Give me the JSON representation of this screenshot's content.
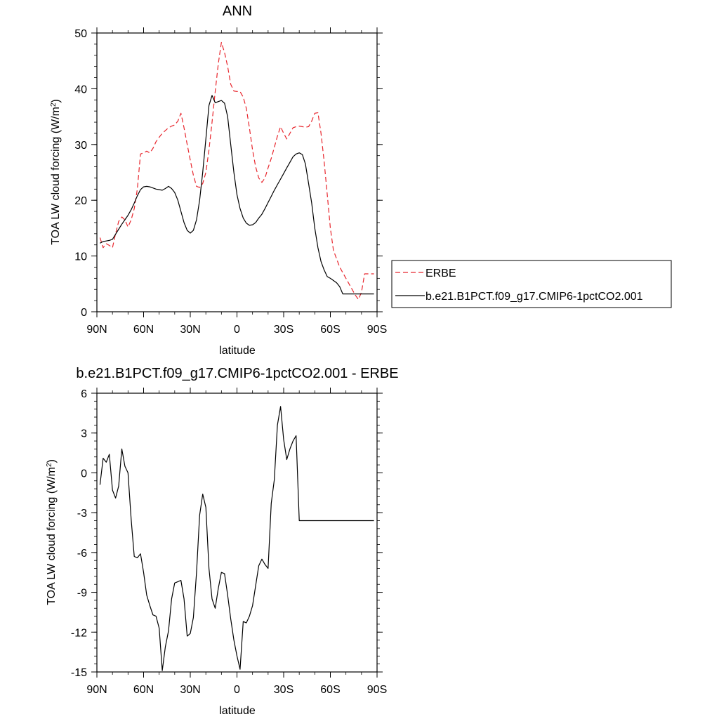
{
  "chart_data": [
    {
      "type": "line",
      "title": "ANN",
      "xlabel": "latitude",
      "ylabel": "TOA LW cloud forcing (W/m²)",
      "xlim": [
        90,
        -90
      ],
      "ylim": [
        0,
        50
      ],
      "x_ticks": [
        {
          "value": 90,
          "label": "90N"
        },
        {
          "value": 60,
          "label": "60N"
        },
        {
          "value": 30,
          "label": "30N"
        },
        {
          "value": 0,
          "label": "0"
        },
        {
          "value": -30,
          "label": "30S"
        },
        {
          "value": -60,
          "label": "60S"
        },
        {
          "value": -90,
          "label": "90S"
        }
      ],
      "y_ticks": [
        {
          "value": 0,
          "label": "0"
        },
        {
          "value": 10,
          "label": "10"
        },
        {
          "value": 20,
          "label": "20"
        },
        {
          "value": 30,
          "label": "30"
        },
        {
          "value": 40,
          "label": "40"
        },
        {
          "value": 50,
          "label": "50"
        }
      ],
      "legend_position": "right",
      "series": [
        {
          "name": "ERBE",
          "color": "#e8262d",
          "dash": "dashed",
          "x": [
            88,
            86,
            84,
            82,
            80,
            78,
            76,
            74,
            72,
            70,
            68,
            66,
            64,
            62,
            60,
            58,
            56,
            54,
            52,
            50,
            48,
            46,
            44,
            42,
            40,
            38,
            36,
            34,
            32,
            30,
            28,
            26,
            24,
            22,
            20,
            18,
            16,
            14,
            12,
            10,
            8,
            6,
            4,
            2,
            0,
            -2,
            -4,
            -6,
            -8,
            -10,
            -12,
            -14,
            -16,
            -18,
            -20,
            -22,
            -24,
            -26,
            -28,
            -30,
            -32,
            -34,
            -36,
            -38,
            -40,
            -42,
            -44,
            -46,
            -48,
            -50,
            -52,
            -54,
            -56,
            -58,
            -60,
            -62,
            -64,
            -66,
            -68,
            -70,
            -72,
            -74,
            -76,
            -78,
            -80,
            -82,
            -84,
            -86,
            -88
          ],
          "y": [
            13.3,
            11.5,
            12.2,
            11.9,
            11.5,
            14.0,
            16.2,
            17.0,
            16.5,
            15.2,
            16.5,
            18.5,
            22.0,
            28.3,
            28.5,
            28.8,
            28.5,
            29.3,
            30.5,
            31.3,
            32.0,
            32.5,
            33.0,
            33.3,
            33.5,
            34.2,
            35.6,
            33.0,
            30.0,
            27.2,
            24.5,
            22.5,
            22.3,
            23.0,
            25.0,
            29.0,
            34.0,
            39.5,
            44.5,
            48.3,
            46.5,
            44.0,
            40.8,
            39.6,
            39.5,
            39.5,
            38.5,
            36.5,
            33.0,
            29.0,
            26.0,
            24.0,
            23.2,
            24.0,
            25.8,
            27.5,
            29.5,
            31.5,
            33.2,
            32.0,
            31.0,
            32.0,
            33.0,
            33.2,
            33.3,
            33.2,
            33.1,
            33.2,
            34.2,
            35.6,
            35.7,
            32.0,
            27.0,
            21.0,
            15.0,
            11.0,
            9.5,
            8.0,
            7.0,
            6.0,
            5.0,
            4.0,
            3.0,
            2.2,
            3.5,
            6.8,
            6.8,
            6.8,
            6.8
          ]
        },
        {
          "name": "b.e21.B1PCT.f09_g17.CMIP6-1pctCO2.001",
          "color": "#000000",
          "dash": "solid",
          "x": [
            88,
            86,
            84,
            82,
            80,
            78,
            76,
            74,
            72,
            70,
            68,
            66,
            64,
            62,
            60,
            58,
            56,
            54,
            52,
            50,
            48,
            46,
            44,
            42,
            40,
            38,
            36,
            34,
            32,
            30,
            28,
            26,
            24,
            22,
            20,
            18,
            16,
            14,
            12,
            10,
            8,
            6,
            4,
            2,
            0,
            -2,
            -4,
            -6,
            -8,
            -10,
            -12,
            -14,
            -16,
            -18,
            -20,
            -22,
            -24,
            -26,
            -28,
            -30,
            -32,
            -34,
            -36,
            -38,
            -40,
            -42,
            -44,
            -46,
            -48,
            -50,
            -52,
            -54,
            -56,
            -58,
            -60,
            -62,
            -64,
            -66,
            -68,
            -70,
            -72,
            -74,
            -76,
            -78,
            -80,
            -82,
            -84,
            -86,
            -88
          ],
          "y": [
            12.3,
            12.6,
            12.7,
            12.8,
            13.0,
            13.9,
            14.8,
            15.7,
            16.5,
            17.3,
            18.3,
            19.5,
            20.8,
            21.9,
            22.4,
            22.5,
            22.4,
            22.2,
            22.0,
            21.9,
            21.8,
            22.1,
            22.5,
            22.1,
            21.4,
            20.0,
            18.0,
            16.0,
            14.6,
            14.1,
            14.6,
            16.5,
            20.0,
            25.0,
            31.0,
            37.0,
            38.8,
            37.5,
            37.7,
            37.9,
            37.4,
            35.0,
            30.0,
            25.0,
            21.0,
            18.5,
            16.8,
            15.9,
            15.5,
            15.6,
            16.0,
            16.8,
            17.5,
            18.5,
            19.6,
            20.7,
            21.8,
            22.8,
            23.8,
            24.8,
            25.8,
            26.8,
            27.8,
            28.3,
            28.5,
            28.2,
            26.5,
            23.0,
            19.5,
            15.0,
            11.5,
            9.0,
            7.5,
            6.3,
            6.0,
            5.6,
            5.2,
            4.5,
            3.2,
            3.2,
            3.2,
            3.2,
            3.2,
            3.2,
            3.2,
            3.2,
            3.2,
            3.2,
            3.2
          ]
        }
      ]
    },
    {
      "type": "line",
      "title": "b.e21.B1PCT.f09_g17.CMIP6-1pctCO2.001 - ERBE",
      "xlabel": "latitude",
      "ylabel": "TOA LW cloud forcing (W/m²)",
      "xlim": [
        90,
        -90
      ],
      "ylim": [
        -15,
        6
      ],
      "x_ticks": [
        {
          "value": 90,
          "label": "90N"
        },
        {
          "value": 60,
          "label": "60N"
        },
        {
          "value": 30,
          "label": "30N"
        },
        {
          "value": 0,
          "label": "0"
        },
        {
          "value": -30,
          "label": "30S"
        },
        {
          "value": -60,
          "label": "60S"
        },
        {
          "value": -90,
          "label": "90S"
        }
      ],
      "y_ticks": [
        {
          "value": 6,
          "label": "6"
        },
        {
          "value": 3,
          "label": "3"
        },
        {
          "value": 0,
          "label": "0"
        },
        {
          "value": -3,
          "label": "-3"
        },
        {
          "value": -6,
          "label": "-6"
        },
        {
          "value": -9,
          "label": "-9"
        },
        {
          "value": -12,
          "label": "-12"
        },
        {
          "value": -15,
          "label": "-15"
        }
      ],
      "series": [
        {
          "color": "#000000",
          "dash": "solid",
          "x": [
            88,
            86,
            84,
            82,
            80,
            78,
            76,
            74,
            72,
            70,
            68,
            66,
            64,
            62,
            60,
            58,
            56,
            54,
            52,
            50,
            48,
            46,
            44,
            42,
            40,
            38,
            36,
            34,
            32,
            30,
            28,
            26,
            24,
            22,
            20,
            18,
            16,
            14,
            12,
            10,
            8,
            6,
            4,
            2,
            0,
            -2,
            -4,
            -6,
            -8,
            -10,
            -12,
            -14,
            -16,
            -18,
            -20,
            -22,
            -24,
            -26,
            -28,
            -30,
            -32,
            -34,
            -36,
            -38,
            -40,
            -42,
            -44,
            -46,
            -48,
            -50,
            -52,
            -54,
            -56,
            -58,
            -60,
            -62,
            -64,
            -66,
            -68,
            -70,
            -72,
            -74,
            -76,
            -78,
            -80,
            -82,
            -84,
            -86,
            -88
          ],
          "y": [
            -0.9,
            1.1,
            0.8,
            1.4,
            -1.3,
            -1.9,
            -1.0,
            1.8,
            0.5,
            0.0,
            -3.5,
            -6.3,
            -6.4,
            -6.1,
            -7.5,
            -9.2,
            -10.0,
            -10.7,
            -10.8,
            -11.7,
            -14.9,
            -13.1,
            -11.9,
            -9.5,
            -8.3,
            -8.2,
            -8.1,
            -9.5,
            -12.3,
            -12.1,
            -10.9,
            -7.5,
            -3.2,
            -1.6,
            -2.6,
            -7.2,
            -9.5,
            -10.2,
            -8.7,
            -7.5,
            -7.6,
            -9.2,
            -11.0,
            -12.6,
            -13.8,
            -14.8,
            -11.2,
            -11.3,
            -10.8,
            -10.0,
            -8.5,
            -7.0,
            -6.5,
            -6.9,
            -7.2,
            -2.3,
            -0.5,
            3.6,
            5.0,
            2.5,
            1.0,
            1.8,
            2.4,
            2.8,
            -3.6,
            -3.6,
            -3.6,
            -3.6,
            -3.6,
            -3.6,
            -3.6,
            -3.6,
            -3.6,
            -3.6,
            -3.6,
            -3.6,
            -3.6,
            -3.6,
            -3.6,
            -3.6,
            -3.6,
            -3.6,
            -3.6,
            -3.6,
            -3.6,
            -3.6,
            -3.6,
            -3.6,
            -3.6
          ]
        }
      ]
    }
  ]
}
